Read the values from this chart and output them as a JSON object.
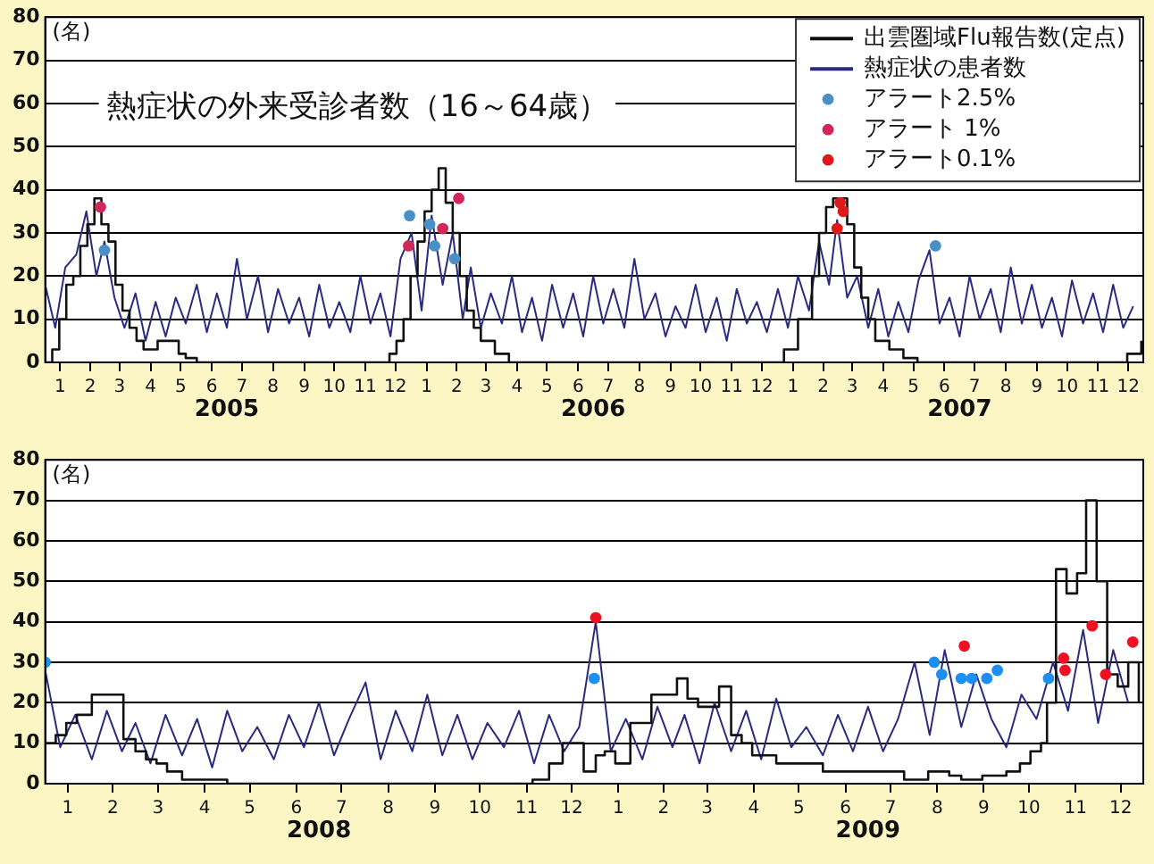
{
  "chart_data": [
    {
      "type": "line",
      "title": "熱症状の外来受診者数（16～64歳）",
      "ylabel": "(名)",
      "legend": "top right",
      "grid": "y",
      "xlim": [
        "2005-01-01",
        "2007-12-31"
      ],
      "ylim": [
        0,
        80
      ],
      "yticks": [
        0,
        10,
        20,
        30,
        40,
        50,
        60,
        70,
        80
      ],
      "xticks": [
        {
          "value": "2005-01-16",
          "label": "1"
        },
        {
          "value": "2005-02-15",
          "label": "2"
        },
        {
          "value": "2005-03-16",
          "label": "3"
        },
        {
          "value": "2005-04-16",
          "label": "4"
        },
        {
          "value": "2005-05-16",
          "label": "5"
        },
        {
          "value": "2005-06-16",
          "label": "6"
        },
        {
          "value": "2005-07-16",
          "label": "7"
        },
        {
          "value": "2005-08-16",
          "label": "8"
        },
        {
          "value": "2005-09-16",
          "label": "9"
        },
        {
          "value": "2005-10-16",
          "label": "10"
        },
        {
          "value": "2005-11-16",
          "label": "11"
        },
        {
          "value": "2005-12-16",
          "label": "12"
        },
        {
          "value": "2006-01-16",
          "label": "1"
        },
        {
          "value": "2006-02-15",
          "label": "2"
        },
        {
          "value": "2006-03-16",
          "label": "3"
        },
        {
          "value": "2006-04-16",
          "label": "4"
        },
        {
          "value": "2006-05-16",
          "label": "5"
        },
        {
          "value": "2006-06-16",
          "label": "6"
        },
        {
          "value": "2006-07-16",
          "label": "7"
        },
        {
          "value": "2006-08-16",
          "label": "8"
        },
        {
          "value": "2006-09-16",
          "label": "9"
        },
        {
          "value": "2006-10-16",
          "label": "10"
        },
        {
          "value": "2006-11-16",
          "label": "11"
        },
        {
          "value": "2006-12-16",
          "label": "12"
        },
        {
          "value": "2007-01-16",
          "label": "1"
        },
        {
          "value": "2007-02-15",
          "label": "2"
        },
        {
          "value": "2007-03-16",
          "label": "3"
        },
        {
          "value": "2007-04-16",
          "label": "4"
        },
        {
          "value": "2007-05-16",
          "label": "5"
        },
        {
          "value": "2007-06-16",
          "label": "6"
        },
        {
          "value": "2007-07-16",
          "label": "7"
        },
        {
          "value": "2007-08-16",
          "label": "8"
        },
        {
          "value": "2007-09-16",
          "label": "9"
        },
        {
          "value": "2007-10-16",
          "label": "10"
        },
        {
          "value": "2007-11-16",
          "label": "11"
        },
        {
          "value": "2007-12-16",
          "label": "12"
        }
      ],
      "annotations": [
        "2005",
        "2006",
        "2007"
      ],
      "series": [
        {
          "name": "出雲圏域Flu報告数(定点)",
          "type": "step",
          "color": "#111111",
          "x": [
            "2005-01-01",
            "2005-01-08",
            "2005-01-15",
            "2005-01-22",
            "2005-01-29",
            "2005-02-05",
            "2005-02-12",
            "2005-02-19",
            "2005-02-26",
            "2005-03-05",
            "2005-03-12",
            "2005-03-19",
            "2005-03-26",
            "2005-04-02",
            "2005-04-09",
            "2005-04-23",
            "2005-05-07",
            "2005-05-14",
            "2005-05-21",
            "2005-06-01",
            "2005-12-03",
            "2005-12-10",
            "2005-12-17",
            "2005-12-24",
            "2005-12-31",
            "2006-01-07",
            "2006-01-14",
            "2006-01-21",
            "2006-01-28",
            "2006-02-04",
            "2006-02-11",
            "2006-02-18",
            "2006-02-25",
            "2006-03-04",
            "2006-03-11",
            "2006-03-25",
            "2006-04-08",
            "2006-12-30",
            "2007-01-07",
            "2007-01-21",
            "2007-02-04",
            "2007-02-11",
            "2007-02-18",
            "2007-02-25",
            "2007-03-04",
            "2007-03-11",
            "2007-03-18",
            "2007-03-25",
            "2007-04-01",
            "2007-04-08",
            "2007-04-22",
            "2007-05-06",
            "2007-05-20",
            "2007-12-15",
            "2007-12-29"
          ],
          "values": [
            0,
            3,
            10,
            18,
            20,
            27,
            32,
            38,
            32,
            28,
            18,
            12,
            8,
            5,
            3,
            5,
            5,
            2,
            1,
            0,
            0,
            2,
            5,
            10,
            20,
            28,
            35,
            40,
            45,
            37,
            30,
            20,
            12,
            8,
            5,
            2,
            0,
            0,
            3,
            10,
            20,
            30,
            36,
            38,
            38,
            32,
            22,
            15,
            10,
            5,
            3,
            1,
            0,
            2,
            5
          ]
        },
        {
          "name": "熱症状の患者数",
          "type": "line",
          "color": "#2a2a80",
          "x": [
            "2005-01-01",
            "2005-01-11",
            "2005-01-21",
            "2005-02-01",
            "2005-02-11",
            "2005-02-21",
            "2005-03-01",
            "2005-03-11",
            "2005-03-21",
            "2005-04-01",
            "2005-04-11",
            "2005-04-21",
            "2005-05-01",
            "2005-05-11",
            "2005-05-21",
            "2005-06-01",
            "2005-06-11",
            "2005-06-21",
            "2005-07-01",
            "2005-07-11",
            "2005-07-21",
            "2005-08-01",
            "2005-08-11",
            "2005-08-21",
            "2005-09-01",
            "2005-09-11",
            "2005-09-21",
            "2005-10-01",
            "2005-10-11",
            "2005-10-21",
            "2005-11-01",
            "2005-11-11",
            "2005-11-21",
            "2005-12-01",
            "2005-12-11",
            "2005-12-21",
            "2006-01-01",
            "2006-01-11",
            "2006-01-21",
            "2006-02-01",
            "2006-02-11",
            "2006-02-21",
            "2006-03-01",
            "2006-03-11",
            "2006-03-21",
            "2006-04-01",
            "2006-04-11",
            "2006-04-21",
            "2006-05-01",
            "2006-05-11",
            "2006-05-21",
            "2006-06-01",
            "2006-06-11",
            "2006-06-21",
            "2006-07-01",
            "2006-07-11",
            "2006-07-21",
            "2006-08-01",
            "2006-08-11",
            "2006-08-21",
            "2006-09-01",
            "2006-09-11",
            "2006-09-21",
            "2006-10-01",
            "2006-10-11",
            "2006-10-21",
            "2006-11-01",
            "2006-11-11",
            "2006-11-21",
            "2006-12-01",
            "2006-12-11",
            "2006-12-21",
            "2007-01-01",
            "2007-01-11",
            "2007-01-21",
            "2007-02-01",
            "2007-02-11",
            "2007-02-21",
            "2007-03-01",
            "2007-03-11",
            "2007-03-21",
            "2007-04-01",
            "2007-04-11",
            "2007-04-21",
            "2007-05-01",
            "2007-05-11",
            "2007-05-21",
            "2007-06-01",
            "2007-06-11",
            "2007-06-21",
            "2007-07-01",
            "2007-07-11",
            "2007-07-21",
            "2007-08-01",
            "2007-08-11",
            "2007-08-21",
            "2007-09-01",
            "2007-09-11",
            "2007-09-21",
            "2007-10-01",
            "2007-10-11",
            "2007-10-21",
            "2007-11-01",
            "2007-11-11",
            "2007-11-21",
            "2007-12-01",
            "2007-12-11",
            "2007-12-21"
          ],
          "values": [
            18,
            8,
            22,
            25,
            35,
            20,
            28,
            15,
            8,
            16,
            5,
            14,
            6,
            15,
            9,
            18,
            7,
            16,
            8,
            24,
            10,
            20,
            7,
            17,
            9,
            15,
            6,
            18,
            8,
            14,
            7,
            20,
            9,
            16,
            6,
            24,
            30,
            12,
            34,
            18,
            30,
            10,
            22,
            8,
            16,
            9,
            20,
            7,
            15,
            5,
            18,
            8,
            16,
            6,
            20,
            9,
            17,
            8,
            24,
            10,
            16,
            6,
            13,
            8,
            18,
            7,
            15,
            5,
            17,
            9,
            14,
            7,
            17,
            8,
            20,
            12,
            28,
            18,
            33,
            15,
            20,
            8,
            17,
            6,
            14,
            7,
            19,
            26,
            9,
            15,
            6,
            20,
            10,
            17,
            7,
            22,
            9,
            18,
            8,
            15,
            6,
            19,
            9,
            16,
            7,
            18,
            8,
            13
          ]
        },
        {
          "name": "アラート2.5%",
          "type": "scatter",
          "marker": "circle",
          "color": "#4a90c8",
          "x": [
            "2005-03-01",
            "2005-12-30",
            "2006-01-19",
            "2006-01-24",
            "2006-02-13",
            "2007-06-07"
          ],
          "values": [
            26,
            34,
            32,
            27,
            24,
            27
          ]
        },
        {
          "name": "アラート 1%",
          "type": "scatter",
          "marker": "circle",
          "color": "#d02858",
          "x": [
            "2005-02-25",
            "2005-12-29",
            "2006-02-01",
            "2006-02-17"
          ],
          "values": [
            36,
            27,
            31,
            38
          ]
        },
        {
          "name": "アラート0.1%",
          "type": "scatter",
          "marker": "circle",
          "color": "#e01818",
          "x": [
            "2007-03-01",
            "2007-03-04",
            "2007-03-07"
          ],
          "values": [
            31,
            37,
            35
          ]
        }
      ]
    },
    {
      "type": "line",
      "ylabel": "(名)",
      "grid": "y",
      "xlim": [
        "2008-01-01",
        "2009-12-31"
      ],
      "ylim": [
        0,
        80
      ],
      "yticks": [
        0,
        10,
        20,
        30,
        40,
        50,
        60,
        70,
        80
      ],
      "xticks": [
        {
          "value": "2008-01-16",
          "label": "1"
        },
        {
          "value": "2008-02-15",
          "label": "2"
        },
        {
          "value": "2008-03-16",
          "label": "3"
        },
        {
          "value": "2008-04-16",
          "label": "4"
        },
        {
          "value": "2008-05-16",
          "label": "5"
        },
        {
          "value": "2008-06-16",
          "label": "6"
        },
        {
          "value": "2008-07-16",
          "label": "7"
        },
        {
          "value": "2008-08-16",
          "label": "8"
        },
        {
          "value": "2008-09-16",
          "label": "9"
        },
        {
          "value": "2008-10-16",
          "label": "10"
        },
        {
          "value": "2008-11-16",
          "label": "11"
        },
        {
          "value": "2008-12-16",
          "label": "12"
        },
        {
          "value": "2009-01-16",
          "label": "1"
        },
        {
          "value": "2009-02-15",
          "label": "2"
        },
        {
          "value": "2009-03-16",
          "label": "3"
        },
        {
          "value": "2009-04-16",
          "label": "4"
        },
        {
          "value": "2009-05-16",
          "label": "5"
        },
        {
          "value": "2009-06-16",
          "label": "6"
        },
        {
          "value": "2009-07-16",
          "label": "7"
        },
        {
          "value": "2009-08-16",
          "label": "8"
        },
        {
          "value": "2009-09-16",
          "label": "9"
        },
        {
          "value": "2009-10-16",
          "label": "10"
        },
        {
          "value": "2009-11-16",
          "label": "11"
        },
        {
          "value": "2009-12-16",
          "label": "12"
        }
      ],
      "annotations": [
        "2008",
        "2009"
      ],
      "series": [
        {
          "type": "step",
          "color": "#111111",
          "x": [
            "2008-01-01",
            "2008-01-08",
            "2008-01-15",
            "2008-01-22",
            "2008-02-01",
            "2008-02-22",
            "2008-03-01",
            "2008-03-08",
            "2008-03-15",
            "2008-03-22",
            "2008-04-01",
            "2008-04-15",
            "2008-05-01",
            "2008-11-20",
            "2008-12-01",
            "2008-12-10",
            "2008-12-24",
            "2009-01-01",
            "2009-01-07",
            "2009-01-14",
            "2009-01-24",
            "2009-02-07",
            "2009-02-24",
            "2009-03-03",
            "2009-03-10",
            "2009-03-24",
            "2009-04-01",
            "2009-04-08",
            "2009-04-15",
            "2009-05-01",
            "2009-06-01",
            "2009-07-25",
            "2009-08-10",
            "2009-08-24",
            "2009-09-01",
            "2009-09-15",
            "2009-10-01",
            "2009-10-10",
            "2009-10-17",
            "2009-10-24",
            "2009-10-28",
            "2009-11-03",
            "2009-11-10",
            "2009-11-17",
            "2009-11-23",
            "2009-11-30",
            "2009-12-07",
            "2009-12-14",
            "2009-12-21",
            "2009-12-28"
          ],
          "values": [
            10,
            12,
            15,
            17,
            22,
            11,
            8,
            6,
            5,
            3,
            1,
            1,
            0,
            1,
            5,
            10,
            3,
            7,
            8,
            5,
            15,
            22,
            26,
            21,
            19,
            24,
            12,
            10,
            7,
            5,
            3,
            1,
            3,
            2,
            1,
            2,
            3,
            5,
            8,
            10,
            20,
            53,
            47,
            52,
            70,
            50,
            27,
            24,
            30,
            20
          ]
        },
        {
          "type": "line",
          "color": "#2a2a80",
          "x": [
            "2008-01-01",
            "2008-01-11",
            "2008-01-21",
            "2008-02-01",
            "2008-02-11",
            "2008-02-21",
            "2008-03-01",
            "2008-03-11",
            "2008-03-21",
            "2008-04-01",
            "2008-04-11",
            "2008-04-21",
            "2008-05-01",
            "2008-05-11",
            "2008-05-21",
            "2008-06-01",
            "2008-06-11",
            "2008-06-21",
            "2008-07-01",
            "2008-07-11",
            "2008-07-21",
            "2008-08-01",
            "2008-08-11",
            "2008-08-21",
            "2008-09-01",
            "2008-09-11",
            "2008-09-21",
            "2008-10-01",
            "2008-10-11",
            "2008-10-21",
            "2008-11-01",
            "2008-11-11",
            "2008-11-21",
            "2008-12-01",
            "2008-12-11",
            "2008-12-21",
            "2009-01-01",
            "2009-01-11",
            "2009-01-21",
            "2009-02-01",
            "2009-02-11",
            "2009-02-21",
            "2009-03-01",
            "2009-03-11",
            "2009-03-21",
            "2009-04-01",
            "2009-04-11",
            "2009-04-21",
            "2009-05-01",
            "2009-05-11",
            "2009-05-21",
            "2009-06-01",
            "2009-06-11",
            "2009-06-21",
            "2009-07-01",
            "2009-07-11",
            "2009-07-21",
            "2009-08-01",
            "2009-08-11",
            "2009-08-21",
            "2009-09-01",
            "2009-09-11",
            "2009-09-21",
            "2009-10-01",
            "2009-10-11",
            "2009-10-21",
            "2009-11-01",
            "2009-11-11",
            "2009-11-21",
            "2009-12-01",
            "2009-12-11",
            "2009-12-21"
          ],
          "values": [
            28,
            9,
            17,
            6,
            18,
            8,
            15,
            5,
            17,
            7,
            16,
            4,
            18,
            8,
            14,
            6,
            17,
            9,
            20,
            7,
            16,
            25,
            6,
            18,
            8,
            22,
            7,
            17,
            6,
            15,
            9,
            18,
            5,
            17,
            8,
            14,
            40,
            8,
            16,
            6,
            19,
            9,
            17,
            5,
            20,
            8,
            18,
            6,
            21,
            9,
            14,
            7,
            17,
            8,
            19,
            8,
            16,
            30,
            12,
            33,
            14,
            27,
            16,
            9,
            22,
            16,
            30,
            18,
            38,
            15,
            33,
            20
          ]
        },
        {
          "type": "scatter",
          "marker": "circle",
          "color": "#1e8ff0",
          "x": [
            "2008-01-01",
            "2008-12-31",
            "2009-08-14",
            "2009-08-19",
            "2009-09-01",
            "2009-09-08",
            "2009-09-18",
            "2009-09-25",
            "2009-10-29"
          ],
          "values": [
            30,
            26,
            30,
            27,
            26,
            26,
            26,
            28,
            26
          ]
        },
        {
          "type": "scatter",
          "marker": "circle",
          "color": "#ee1122",
          "x": [
            "2009-01-01",
            "2009-09-03",
            "2009-11-08",
            "2009-11-09",
            "2009-11-27",
            "2009-12-06",
            "2009-12-24"
          ],
          "values": [
            41,
            34,
            31,
            28,
            39,
            27,
            35
          ]
        }
      ]
    }
  ]
}
